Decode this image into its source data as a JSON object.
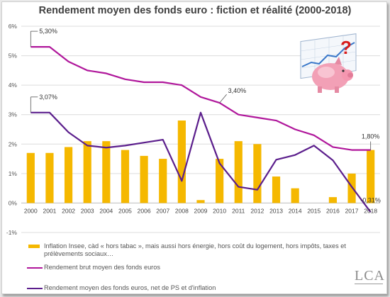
{
  "chart_data": {
    "type": "bar+line",
    "title": "Rendement moyen des fonds euro : fiction et réalité (2000-2018)",
    "categories": [
      "2000",
      "2001",
      "2002",
      "2003",
      "2004",
      "2005",
      "2006",
      "2007",
      "2008",
      "2009",
      "2010",
      "2011",
      "2012",
      "2013",
      "2014",
      "2015",
      "2016",
      "2017",
      "2018"
    ],
    "yticks": [
      "6%",
      "5%",
      "4%",
      "3%",
      "2%",
      "1%",
      "0%",
      "-1%"
    ],
    "ylim": [
      -1,
      6
    ],
    "grid": true,
    "series": [
      {
        "name": "Inflation Insee, càd « hors tabac », mais aussi hors énergie, hors coût du logement, hors impôts, taxes et prélèvements sociaux…",
        "kind": "bar",
        "color": "#f5b800",
        "values": [
          1.7,
          1.7,
          1.9,
          2.1,
          2.1,
          1.8,
          1.6,
          1.5,
          2.8,
          0.1,
          1.5,
          2.1,
          2.0,
          0.9,
          0.5,
          0.0,
          0.2,
          1.0,
          1.8
        ]
      },
      {
        "name": "Rendement brut moyen des fonds euros",
        "kind": "line",
        "color": "#b0179b",
        "values": [
          5.3,
          5.3,
          4.8,
          4.5,
          4.4,
          4.2,
          4.1,
          4.1,
          4.0,
          3.6,
          3.4,
          3.0,
          2.9,
          2.8,
          2.5,
          2.3,
          1.9,
          1.8,
          1.8
        ]
      },
      {
        "name": "Rendement moyen des fonds euros, net de PS et d'inflation",
        "kind": "line",
        "color": "#5b1e8c",
        "values": [
          3.07,
          3.07,
          2.4,
          1.95,
          1.88,
          1.95,
          2.05,
          2.15,
          0.75,
          3.07,
          1.35,
          0.55,
          0.45,
          1.47,
          1.63,
          1.95,
          1.45,
          0.55,
          -0.31
        ]
      }
    ],
    "annotations": [
      {
        "text": "5,30%",
        "series": 1,
        "index": 0
      },
      {
        "text": "3,07%",
        "series": 2,
        "index": 0
      },
      {
        "text": "3,40%",
        "series": 1,
        "index": 10
      },
      {
        "text": "1,80%",
        "series": 1,
        "index": 18
      },
      {
        "text": "-0,31%",
        "series": 2,
        "index": 18
      }
    ]
  },
  "logo": {
    "text": "LCA"
  },
  "illustration": {
    "icon": "piggy-bank-question-icon",
    "question_mark": "?"
  }
}
